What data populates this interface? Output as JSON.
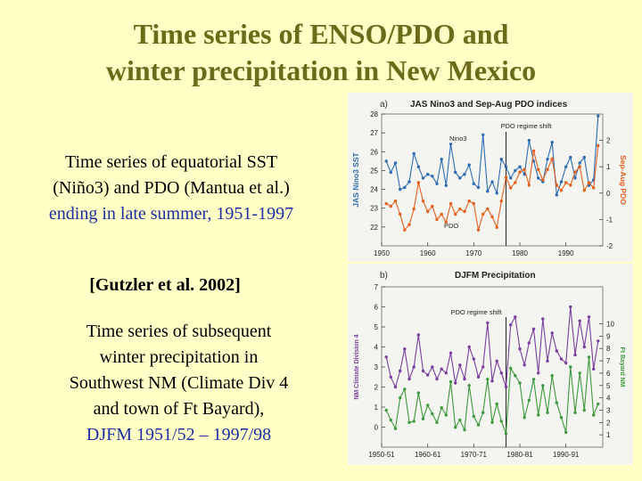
{
  "slide": {
    "title_line1": "Time series of ENSO/PDO and",
    "title_line2": "winter precipitation in New Mexico",
    "text1_line1": "Time series of equatorial SST",
    "text1_line2": "(Niño3) and PDO (Mantua et al.)",
    "text1_line3_a": "ending in late summer, ",
    "text1_line3_b": "1951-1997",
    "citation": "[Gutzler et al. 2002]",
    "text2_line1": "Time series of subsequent",
    "text2_line2": "winter precipitation in",
    "text2_line3": "Southwest NM (Climate Div 4",
    "text2_line4": "and town of Ft Bayard),",
    "text2_line5": "DJFM 1951/52 – 1997/98"
  },
  "colors": {
    "title": "#6B6B1A",
    "nino3": "#2E6DB4",
    "pdo": "#E4601E",
    "div4": "#7A3FA0",
    "ftbayard": "#3E9A3E"
  },
  "chart_data": [
    {
      "type": "line",
      "panel_label": "a)",
      "title": "JAS Nino3 and Sep-Aug PDO indices",
      "ylabel_left": "JAS Nino3 SST",
      "ylabel_right": "Sep-Aug PDO",
      "annotation_shift": "PDO regime shift",
      "label_nino3": "Nino3",
      "label_pdo": "PDO",
      "shift_year": 1977,
      "xlim": [
        1950,
        1998
      ],
      "xticks": [
        "1950",
        "1960",
        "1970",
        "1980",
        "1990"
      ],
      "ylim_left": [
        21,
        28
      ],
      "yticks_left": [
        "28",
        "27",
        "26",
        "25",
        "24",
        "23",
        "22"
      ],
      "ylim_right": [
        -2,
        3
      ],
      "yticks_right": [
        "2",
        "1",
        "0",
        "-1",
        "-2"
      ],
      "x": [
        1951,
        1952,
        1953,
        1954,
        1955,
        1956,
        1957,
        1958,
        1959,
        1960,
        1961,
        1962,
        1963,
        1964,
        1965,
        1966,
        1967,
        1968,
        1969,
        1970,
        1971,
        1972,
        1973,
        1974,
        1975,
        1976,
        1977,
        1978,
        1979,
        1980,
        1981,
        1982,
        1983,
        1984,
        1985,
        1986,
        1987,
        1988,
        1989,
        1990,
        1991,
        1992,
        1993,
        1994,
        1995,
        1996,
        1997
      ],
      "series": [
        {
          "name": "Nino3",
          "axis": "left",
          "values": [
            25.5,
            24.9,
            25.4,
            24.0,
            24.1,
            24.4,
            25.9,
            25.2,
            24.6,
            24.8,
            24.7,
            24.3,
            25.6,
            24.2,
            26.4,
            24.9,
            24.6,
            24.8,
            25.3,
            24.3,
            24.1,
            26.9,
            23.9,
            24.4,
            23.8,
            25.6,
            25.2,
            24.6,
            25.0,
            25.2,
            24.8,
            26.6,
            25.5,
            24.6,
            24.4,
            25.6,
            26.5,
            23.7,
            24.4,
            25.2,
            25.7,
            24.6,
            25.4,
            25.7,
            24.2,
            24.5,
            27.9
          ]
        },
        {
          "name": "PDO",
          "axis": "right",
          "values": [
            -0.4,
            -0.5,
            -0.3,
            -0.8,
            -1.4,
            -1.2,
            -0.6,
            0.4,
            -0.3,
            -0.7,
            -0.5,
            -1.0,
            -0.8,
            -1.1,
            -0.4,
            -0.8,
            -0.6,
            -0.7,
            -0.3,
            -0.4,
            -1.4,
            -0.8,
            -0.6,
            -0.9,
            -1.3,
            -0.3,
            0.6,
            0.2,
            0.4,
            0.8,
            0.9,
            0.3,
            1.6,
            0.9,
            0.5,
            0.9,
            1.3,
            0.3,
            0.1,
            0.4,
            0.3,
            0.8,
            1.0,
            0.1,
            0.4,
            0.2,
            1.8
          ]
        }
      ]
    },
    {
      "type": "line",
      "panel_label": "b)",
      "title": "DJFM Precipitation",
      "ylabel_left": "NM Climate Division 4",
      "ylabel_right": "Ft Bayard NM",
      "annotation_shift": "PDO regime shift",
      "shift_season": 1977,
      "xlim": [
        1950,
        1998
      ],
      "xticks": [
        "1950-51",
        "1960-61",
        "1970-71",
        "1980-81",
        "1990-91"
      ],
      "ylim_left": [
        -1,
        7
      ],
      "yticks_left": [
        "7",
        "6",
        "5",
        "4",
        "3",
        "2",
        "1",
        "0"
      ],
      "ylim_right": [
        0,
        13
      ],
      "yticks_right": [
        "10",
        "9",
        "8",
        "7",
        "6",
        "5",
        "4",
        "3",
        "2",
        "1"
      ],
      "x": [
        1951,
        1952,
        1953,
        1954,
        1955,
        1956,
        1957,
        1958,
        1959,
        1960,
        1961,
        1962,
        1963,
        1964,
        1965,
        1966,
        1967,
        1968,
        1969,
        1970,
        1971,
        1972,
        1973,
        1974,
        1975,
        1976,
        1977,
        1978,
        1979,
        1980,
        1981,
        1982,
        1983,
        1984,
        1985,
        1986,
        1987,
        1988,
        1989,
        1990,
        1991,
        1992,
        1993,
        1994,
        1995,
        1996,
        1997
      ],
      "series": [
        {
          "name": "NM Climate Division 4",
          "axis": "left",
          "values": [
            3.5,
            2.5,
            2.0,
            2.8,
            3.9,
            2.4,
            3.0,
            4.6,
            2.8,
            2.6,
            3.0,
            2.4,
            2.9,
            2.7,
            3.7,
            2.2,
            3.1,
            2.4,
            4.0,
            3.4,
            2.5,
            3.0,
            5.2,
            2.3,
            3.3,
            2.7,
            2.0,
            5.1,
            5.5,
            3.9,
            3.1,
            4.2,
            4.9,
            2.7,
            5.4,
            3.3,
            4.7,
            3.8,
            3.4,
            3.2,
            6.0,
            3.6,
            5.3,
            4.0,
            5.5,
            2.9,
            4.3
          ]
        },
        {
          "name": "Ft Bayard NM",
          "axis": "right",
          "values": [
            3.0,
            2.2,
            1.5,
            4.0,
            4.7,
            2.0,
            2.1,
            4.4,
            2.3,
            3.4,
            2.7,
            2.0,
            3.2,
            2.6,
            5.3,
            1.6,
            2.2,
            1.4,
            5.0,
            2.5,
            1.8,
            2.8,
            5.5,
            2.0,
            3.5,
            2.1,
            1.1,
            6.4,
            5.8,
            5.2,
            2.4,
            3.8,
            5.5,
            2.6,
            5.0,
            2.8,
            5.8,
            3.6,
            2.4,
            1.2,
            6.5,
            2.8,
            6.0,
            3.0,
            7.3,
            2.6,
            3.5
          ]
        }
      ]
    }
  ]
}
